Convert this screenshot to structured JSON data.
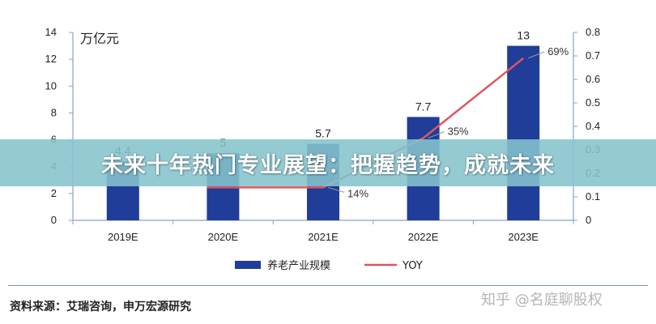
{
  "chart_data": {
    "type": "bar",
    "categories": [
      "2019E",
      "2020E",
      "2021E",
      "2022E",
      "2023E"
    ],
    "series": [
      {
        "name": "养老产业规模",
        "type": "bar",
        "axis": "left",
        "values": [
          4.4,
          5,
          5.7,
          7.7,
          13
        ],
        "labels": [
          "4.4",
          "5",
          "5.7",
          "7.7",
          "13"
        ],
        "color": "#1f3d99"
      },
      {
        "name": "YOY",
        "type": "line",
        "axis": "right",
        "values": [
          null,
          0.14,
          0.14,
          0.35,
          0.69
        ],
        "labels": [
          "",
          "",
          "14%",
          "35%",
          "69%"
        ],
        "color": "#e0565e"
      }
    ],
    "y_left": {
      "unit": "万亿元",
      "ylim": [
        0,
        14
      ],
      "ticks": [
        "0",
        "2",
        "4",
        "6",
        "8",
        "10",
        "12",
        "14"
      ]
    },
    "y_right": {
      "ylim": [
        0,
        0.8
      ],
      "ticks": [
        "0",
        "0.1",
        "0.2",
        "0.3",
        "0.4",
        "0.5",
        "0.6",
        "0.7",
        "0.8"
      ]
    },
    "legend": "bottom",
    "grid": false
  },
  "banner": {
    "text": "未来十年热门专业展望：把握趋势，成就未来"
  },
  "source": {
    "text": "资料来源：艾瑞咨询，申万宏源研究"
  },
  "watermark": {
    "text": "知乎 @名庭聊股权"
  }
}
